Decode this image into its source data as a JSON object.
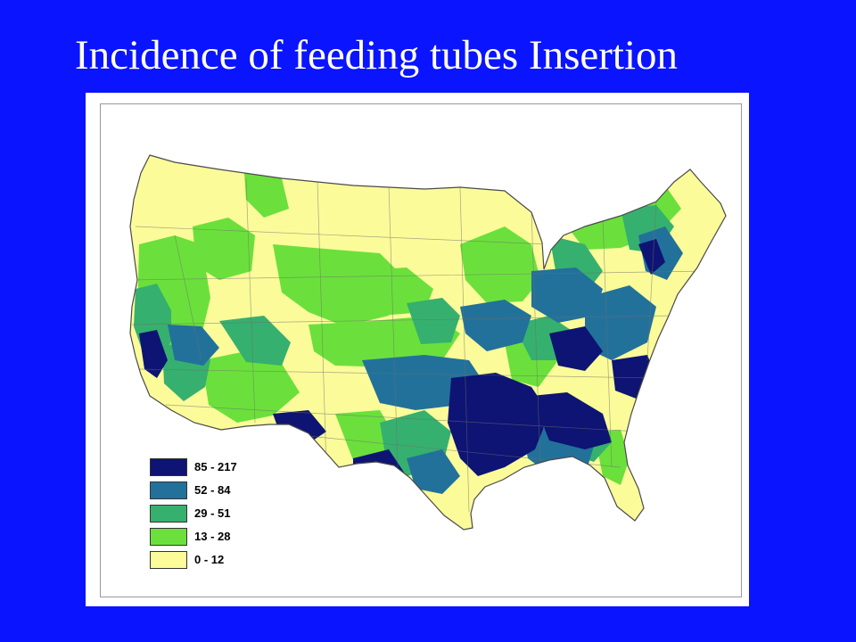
{
  "title": "Incidence of feeding tubes Insertion",
  "colors": {
    "background": "#0a14ff",
    "panel": "#ffffff",
    "title_text": "#ffffff"
  },
  "legend": [
    {
      "label": "85 - 217",
      "color": "#0d1473"
    },
    {
      "label": "52 - 84",
      "color": "#22719b"
    },
    {
      "label": "29 - 51",
      "color": "#36b06e"
    },
    {
      "label": "13 - 28",
      "color": "#6be03c"
    },
    {
      "label": "0 - 12",
      "color": "#fbfb9a"
    }
  ],
  "map": {
    "subject": "contiguous United States by hospital referral region",
    "regional_pattern": [
      {
        "area": "Northern Plains / Mountain West",
        "class": "0 - 12"
      },
      {
        "area": "Pacific Northwest interior",
        "class": "0 - 12"
      },
      {
        "area": "New England",
        "class": "0 - 12"
      },
      {
        "area": "Upper Midwest",
        "class": "13 - 28"
      },
      {
        "area": "Southwest / Great Basin",
        "class": "13 - 28"
      },
      {
        "area": "California",
        "class": "29 - 51"
      },
      {
        "area": "Central Plains",
        "class": "52 - 84"
      },
      {
        "area": "Ohio Valley / Appalachia",
        "class": "52 - 84"
      },
      {
        "area": "Mississippi / Alabama / Louisiana",
        "class": "85 - 217"
      },
      {
        "area": "South Texas",
        "class": "85 - 217"
      },
      {
        "area": "Georgia / Carolinas",
        "class": "85 - 217"
      }
    ]
  }
}
